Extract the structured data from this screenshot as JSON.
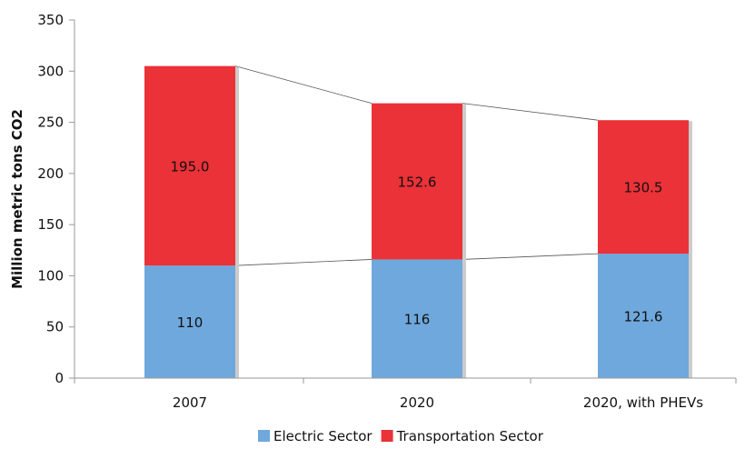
{
  "chart_data": {
    "type": "bar",
    "stacked": true,
    "categories": [
      "2007",
      "2020",
      "2020, with PHEVs"
    ],
    "series": [
      {
        "name": "Electric Sector",
        "color": "#6fa8dc",
        "values": [
          110,
          116,
          121.6
        ],
        "labels": [
          "110",
          "116",
          "121.6"
        ]
      },
      {
        "name": "Transportation Sector",
        "color": "#ea3238",
        "values": [
          195.0,
          152.6,
          130.5
        ],
        "labels": [
          "195.0",
          "152.6",
          "130.5"
        ]
      }
    ],
    "ylabel": "Million metric tons CO2",
    "ylim": [
      0,
      350
    ],
    "yticks": [
      0,
      50,
      100,
      150,
      200,
      250,
      300,
      350
    ],
    "ytick_labels": [
      "0",
      "50",
      "100",
      "150",
      "200",
      "250",
      "300",
      "350"
    ],
    "connector_lines": true,
    "grid": false,
    "legend_position": "bottom"
  }
}
